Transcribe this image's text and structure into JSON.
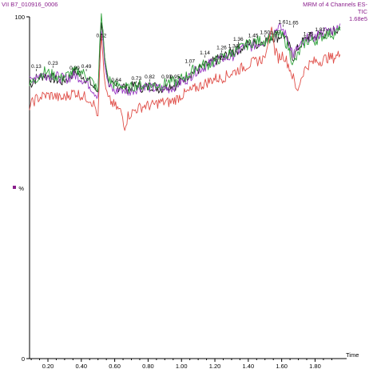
{
  "header": {
    "sample_id": "VII B7_010916_0006",
    "method_line1": "MRM of 4 Channels ES-",
    "method_line2": "TIC",
    "method_line3": "1.68e5"
  },
  "axis": {
    "y_top_label": "100",
    "y_bottom_label": "0",
    "y_unit_label": "%",
    "x_label": "Time"
  },
  "colors": {
    "black": "#1a1a1a",
    "purple": "#9b3cc4",
    "green": "#2fa13a",
    "red": "#e0504a",
    "header": "#8a1e8c",
    "legend_marker": "#8a1e8c"
  },
  "chart_data": {
    "type": "line",
    "xlabel": "Time",
    "ylabel": "%",
    "xlim": [
      0.09,
      1.97
    ],
    "ylim": [
      0,
      100
    ],
    "x_ticks": [
      0.2,
      0.4,
      0.6,
      0.8,
      1.0,
      1.2,
      1.4,
      1.6,
      1.8
    ],
    "x_tick_labels": [
      "0.20",
      "0.40",
      "0.60",
      "0.80",
      "1.00",
      "1.20",
      "1.40",
      "1.60",
      "1.80"
    ],
    "series": [
      {
        "color": "black",
        "points": [
          [
            0.09,
            80
          ],
          [
            0.13,
            82
          ],
          [
            0.18,
            83
          ],
          [
            0.23,
            82
          ],
          [
            0.28,
            81
          ],
          [
            0.32,
            82
          ],
          [
            0.36,
            84
          ],
          [
            0.4,
            83
          ],
          [
            0.45,
            81
          ],
          [
            0.48,
            79
          ],
          [
            0.5,
            78
          ],
          [
            0.51,
            90
          ],
          [
            0.52,
            99
          ],
          [
            0.53,
            95
          ],
          [
            0.54,
            88
          ],
          [
            0.56,
            81
          ],
          [
            0.6,
            79
          ],
          [
            0.64,
            80
          ],
          [
            0.68,
            79
          ],
          [
            0.73,
            80
          ],
          [
            0.78,
            79
          ],
          [
            0.82,
            80
          ],
          [
            0.87,
            79
          ],
          [
            0.93,
            80
          ],
          [
            0.97,
            80
          ],
          [
            1.0,
            81
          ],
          [
            1.04,
            83
          ],
          [
            1.08,
            84
          ],
          [
            1.12,
            85
          ],
          [
            1.16,
            86
          ],
          [
            1.2,
            87
          ],
          [
            1.24,
            88
          ],
          [
            1.28,
            89
          ],
          [
            1.32,
            90
          ],
          [
            1.36,
            91
          ],
          [
            1.4,
            92
          ],
          [
            1.45,
            92
          ],
          [
            1.5,
            93
          ],
          [
            1.54,
            94
          ],
          [
            1.58,
            94
          ],
          [
            1.61,
            95
          ],
          [
            1.64,
            92
          ],
          [
            1.67,
            88
          ],
          [
            1.7,
            91
          ],
          [
            1.73,
            93
          ],
          [
            1.76,
            94
          ],
          [
            1.8,
            94
          ],
          [
            1.83,
            95
          ],
          [
            1.87,
            95
          ],
          [
            1.91,
            96
          ],
          [
            1.95,
            97
          ]
        ]
      },
      {
        "color": "purple",
        "points": [
          [
            0.09,
            81
          ],
          [
            0.13,
            83
          ],
          [
            0.18,
            83
          ],
          [
            0.23,
            83
          ],
          [
            0.28,
            82
          ],
          [
            0.32,
            82
          ],
          [
            0.36,
            83
          ],
          [
            0.4,
            82
          ],
          [
            0.45,
            80
          ],
          [
            0.48,
            78
          ],
          [
            0.5,
            77
          ],
          [
            0.51,
            85
          ],
          [
            0.52,
            96
          ],
          [
            0.53,
            93
          ],
          [
            0.54,
            86
          ],
          [
            0.56,
            80
          ],
          [
            0.6,
            78
          ],
          [
            0.64,
            79
          ],
          [
            0.68,
            78
          ],
          [
            0.73,
            79
          ],
          [
            0.78,
            80
          ],
          [
            0.82,
            79
          ],
          [
            0.87,
            79
          ],
          [
            0.93,
            79
          ],
          [
            0.97,
            80
          ],
          [
            1.0,
            81
          ],
          [
            1.04,
            82
          ],
          [
            1.08,
            84
          ],
          [
            1.12,
            85
          ],
          [
            1.16,
            86
          ],
          [
            1.2,
            87
          ],
          [
            1.24,
            88
          ],
          [
            1.28,
            88
          ],
          [
            1.32,
            89
          ],
          [
            1.36,
            91
          ],
          [
            1.4,
            91
          ],
          [
            1.45,
            92
          ],
          [
            1.5,
            93
          ],
          [
            1.54,
            95
          ],
          [
            1.58,
            97
          ],
          [
            1.61,
            96
          ],
          [
            1.64,
            93
          ],
          [
            1.67,
            89
          ],
          [
            1.7,
            91
          ],
          [
            1.73,
            92
          ],
          [
            1.76,
            94
          ],
          [
            1.8,
            94
          ],
          [
            1.83,
            95
          ],
          [
            1.87,
            96
          ],
          [
            1.91,
            96
          ],
          [
            1.95,
            98
          ]
        ]
      },
      {
        "color": "green",
        "points": [
          [
            0.09,
            80
          ],
          [
            0.13,
            82
          ],
          [
            0.18,
            84
          ],
          [
            0.23,
            83
          ],
          [
            0.28,
            82
          ],
          [
            0.32,
            83
          ],
          [
            0.36,
            84
          ],
          [
            0.4,
            84
          ],
          [
            0.45,
            82
          ],
          [
            0.48,
            80
          ],
          [
            0.5,
            78
          ],
          [
            0.51,
            92
          ],
          [
            0.52,
            100
          ],
          [
            0.53,
            96
          ],
          [
            0.54,
            88
          ],
          [
            0.56,
            82
          ],
          [
            0.6,
            80
          ],
          [
            0.64,
            80
          ],
          [
            0.68,
            79
          ],
          [
            0.73,
            80
          ],
          [
            0.78,
            80
          ],
          [
            0.82,
            80
          ],
          [
            0.87,
            80
          ],
          [
            0.93,
            81
          ],
          [
            0.97,
            81
          ],
          [
            1.0,
            82
          ],
          [
            1.04,
            83
          ],
          [
            1.08,
            85
          ],
          [
            1.12,
            86
          ],
          [
            1.16,
            86
          ],
          [
            1.2,
            87
          ],
          [
            1.24,
            88
          ],
          [
            1.28,
            89
          ],
          [
            1.32,
            90
          ],
          [
            1.36,
            91
          ],
          [
            1.4,
            92
          ],
          [
            1.45,
            93
          ],
          [
            1.5,
            93
          ],
          [
            1.54,
            94
          ],
          [
            1.58,
            95
          ],
          [
            1.61,
            94
          ],
          [
            1.64,
            91
          ],
          [
            1.67,
            86
          ],
          [
            1.7,
            89
          ],
          [
            1.73,
            92
          ],
          [
            1.76,
            93
          ],
          [
            1.8,
            93
          ],
          [
            1.83,
            94
          ],
          [
            1.87,
            95
          ],
          [
            1.91,
            95
          ],
          [
            1.95,
            96
          ]
        ]
      },
      {
        "color": "red",
        "points": [
          [
            0.09,
            74
          ],
          [
            0.13,
            76
          ],
          [
            0.18,
            77
          ],
          [
            0.23,
            77
          ],
          [
            0.28,
            76
          ],
          [
            0.32,
            77
          ],
          [
            0.36,
            78
          ],
          [
            0.4,
            77
          ],
          [
            0.45,
            76
          ],
          [
            0.48,
            74
          ],
          [
            0.5,
            71
          ],
          [
            0.51,
            85
          ],
          [
            0.52,
            95
          ],
          [
            0.53,
            88
          ],
          [
            0.54,
            80
          ],
          [
            0.56,
            76
          ],
          [
            0.6,
            74
          ],
          [
            0.64,
            72
          ],
          [
            0.66,
            68
          ],
          [
            0.68,
            71
          ],
          [
            0.73,
            73
          ],
          [
            0.78,
            74
          ],
          [
            0.82,
            74
          ],
          [
            0.87,
            75
          ],
          [
            0.93,
            75
          ],
          [
            0.97,
            76
          ],
          [
            1.0,
            77
          ],
          [
            1.04,
            78
          ],
          [
            1.08,
            79
          ],
          [
            1.12,
            80
          ],
          [
            1.16,
            81
          ],
          [
            1.2,
            82
          ],
          [
            1.24,
            82
          ],
          [
            1.28,
            83
          ],
          [
            1.32,
            84
          ],
          [
            1.36,
            85
          ],
          [
            1.4,
            86
          ],
          [
            1.45,
            87
          ],
          [
            1.5,
            88
          ],
          [
            1.54,
            97
          ],
          [
            1.56,
            90
          ],
          [
            1.58,
            88
          ],
          [
            1.61,
            89
          ],
          [
            1.64,
            86
          ],
          [
            1.67,
            82
          ],
          [
            1.69,
            78
          ],
          [
            1.71,
            81
          ],
          [
            1.73,
            84
          ],
          [
            1.76,
            86
          ],
          [
            1.8,
            87
          ],
          [
            1.83,
            87
          ],
          [
            1.87,
            88
          ],
          [
            1.91,
            88
          ],
          [
            1.95,
            89
          ]
        ]
      }
    ],
    "peak_labels": [
      {
        "text": "0.13",
        "x": 0.13,
        "y": 85
      },
      {
        "text": "0.23",
        "x": 0.23,
        "y": 86
      },
      {
        "text": "0.39",
        "x": 0.36,
        "y": 84.5
      },
      {
        "text": "0.49",
        "x": 0.43,
        "y": 85
      },
      {
        "text": "0.52",
        "x": 0.52,
        "y": 94
      },
      {
        "text": "0.64",
        "x": 0.61,
        "y": 81
      },
      {
        "text": "0.73",
        "x": 0.73,
        "y": 81.5
      },
      {
        "text": "0.82",
        "x": 0.81,
        "y": 82
      },
      {
        "text": "0.93",
        "x": 0.91,
        "y": 82
      },
      {
        "text": "0.95",
        "x": 0.96,
        "y": 82
      },
      {
        "text": "1.07",
        "x": 1.05,
        "y": 86.5
      },
      {
        "text": "1.14",
        "x": 1.14,
        "y": 89
      },
      {
        "text": "1.22",
        "x": 1.23,
        "y": 87.5
      },
      {
        "text": "1.26",
        "x": 1.24,
        "y": 90.5
      },
      {
        "text": "1.34",
        "x": 1.31,
        "y": 91
      },
      {
        "text": "1.36",
        "x": 1.34,
        "y": 93
      },
      {
        "text": "1.45",
        "x": 1.43,
        "y": 94
      },
      {
        "text": "1.50",
        "x": 1.5,
        "y": 95
      },
      {
        "text": "1.55",
        "x": 1.56,
        "y": 94.8
      },
      {
        "text": "1.61",
        "x": 1.61,
        "y": 98
      },
      {
        "text": "1.65",
        "x": 1.67,
        "y": 97.8
      },
      {
        "text": "1.76",
        "x": 1.76,
        "y": 94.5
      },
      {
        "text": "1.83",
        "x": 1.83,
        "y": 95.8
      }
    ]
  }
}
